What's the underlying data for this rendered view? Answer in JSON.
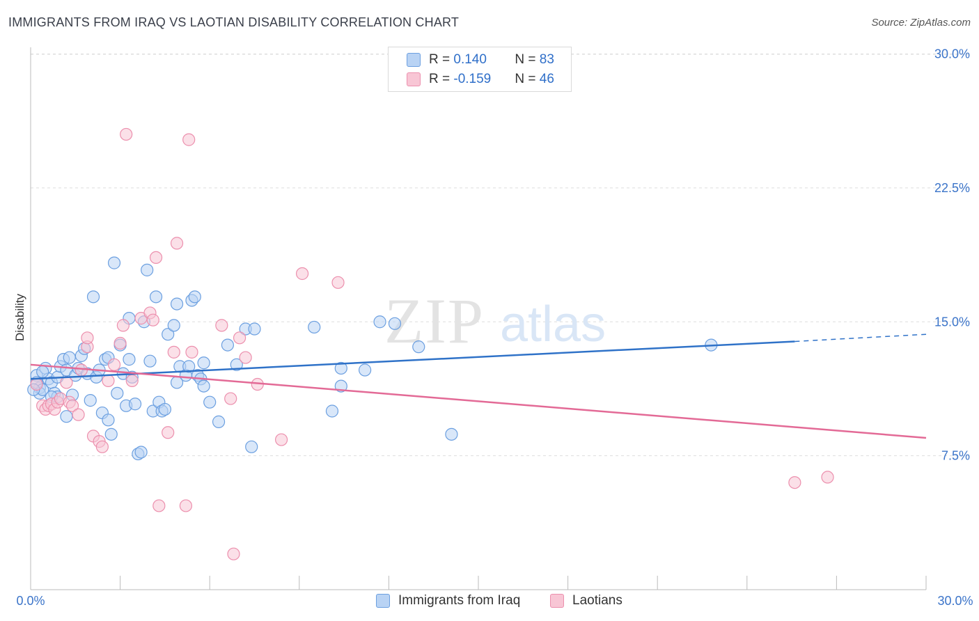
{
  "title": "IMMIGRANTS FROM IRAQ VS LAOTIAN DISABILITY CORRELATION CHART",
  "source": "Source: ZipAtlas.com",
  "watermark": {
    "zip": "ZIP",
    "atlas": "atlas"
  },
  "legend": {
    "rows": [
      {
        "r_label": "R = ",
        "r_value": "0.140",
        "n_label": "N = ",
        "n_value": "83"
      },
      {
        "r_label": "R = ",
        "r_value": "-0.159",
        "n_label": "N = ",
        "n_value": "46"
      }
    ]
  },
  "colors": {
    "blue_fill": "#b9d3f4",
    "blue_stroke": "#6b9fe0",
    "blue_line": "#2f72c8",
    "pink_fill": "#f8c6d5",
    "pink_stroke": "#ec8fad",
    "pink_line": "#e36a96",
    "axis_text": "#3b74c9",
    "grid": "#dddddd"
  },
  "chart_data": {
    "type": "scatter",
    "title": "IMMIGRANTS FROM IRAQ VS LAOTIAN DISABILITY CORRELATION CHART",
    "xlabel": "",
    "ylabel": "Disability",
    "xlim": [
      0,
      30
    ],
    "ylim": [
      0,
      31
    ],
    "x_tick_labels": [
      "0.0%",
      "30.0%"
    ],
    "y_ticks": [
      7.5,
      15.0,
      22.5,
      30.0
    ],
    "y_tick_labels": [
      "7.5%",
      "15.0%",
      "22.5%",
      "30.0%"
    ],
    "grid": true,
    "legend_position": "top-center",
    "series": [
      {
        "name": "Immigrants from Iraq",
        "color": "#6b9fe0",
        "r": 0.14,
        "n": 83,
        "trend": {
          "x": [
            0,
            25.6,
            30
          ],
          "y": [
            11.8,
            13.9,
            14.3
          ],
          "dashed_from": 25.6
        },
        "points": [
          [
            0.2,
            12.0
          ],
          [
            0.3,
            11.3
          ],
          [
            0.3,
            11.0
          ],
          [
            0.2,
            11.6
          ],
          [
            0.4,
            11.2
          ],
          [
            0.5,
            12.4
          ],
          [
            0.6,
            11.8
          ],
          [
            0.7,
            11.6
          ],
          [
            0.8,
            11.0
          ],
          [
            0.9,
            11.9
          ],
          [
            1.0,
            12.5
          ],
          [
            1.1,
            12.9
          ],
          [
            1.2,
            12.3
          ],
          [
            0.9,
            10.8
          ],
          [
            1.2,
            9.7
          ],
          [
            1.4,
            10.9
          ],
          [
            1.5,
            12.0
          ],
          [
            1.6,
            12.4
          ],
          [
            1.7,
            13.1
          ],
          [
            1.8,
            13.5
          ],
          [
            1.9,
            12.1
          ],
          [
            2.0,
            10.6
          ],
          [
            2.1,
            16.4
          ],
          [
            2.2,
            11.9
          ],
          [
            2.3,
            12.3
          ],
          [
            2.4,
            9.9
          ],
          [
            2.5,
            12.9
          ],
          [
            2.6,
            9.5
          ],
          [
            2.7,
            8.7
          ],
          [
            2.8,
            18.3
          ],
          [
            2.9,
            11.0
          ],
          [
            3.0,
            13.7
          ],
          [
            3.1,
            12.1
          ],
          [
            3.2,
            10.3
          ],
          [
            3.3,
            12.9
          ],
          [
            3.4,
            11.9
          ],
          [
            3.5,
            10.4
          ],
          [
            3.6,
            7.6
          ],
          [
            3.7,
            7.7
          ],
          [
            3.8,
            15.0
          ],
          [
            3.9,
            17.9
          ],
          [
            4.0,
            12.8
          ],
          [
            4.1,
            10.0
          ],
          [
            4.2,
            16.4
          ],
          [
            4.3,
            10.5
          ],
          [
            4.4,
            10.0
          ],
          [
            4.5,
            10.1
          ],
          [
            4.6,
            14.3
          ],
          [
            4.8,
            14.8
          ],
          [
            4.9,
            16.0
          ],
          [
            5.0,
            12.5
          ],
          [
            5.2,
            12.0
          ],
          [
            5.3,
            12.5
          ],
          [
            5.4,
            16.2
          ],
          [
            5.5,
            16.4
          ],
          [
            5.6,
            12.0
          ],
          [
            5.7,
            11.8
          ],
          [
            5.8,
            11.4
          ],
          [
            6.0,
            10.5
          ],
          [
            6.3,
            9.4
          ],
          [
            6.6,
            13.7
          ],
          [
            7.2,
            14.6
          ],
          [
            7.5,
            14.6
          ],
          [
            7.4,
            8.0
          ],
          [
            9.5,
            14.7
          ],
          [
            10.1,
            10.0
          ],
          [
            10.4,
            12.4
          ],
          [
            10.4,
            11.4
          ],
          [
            11.2,
            12.3
          ],
          [
            11.7,
            15.0
          ],
          [
            12.2,
            14.9
          ],
          [
            13.0,
            13.6
          ],
          [
            14.1,
            8.7
          ],
          [
            22.8,
            13.7
          ],
          [
            0.1,
            11.2
          ],
          [
            0.4,
            12.2
          ],
          [
            0.7,
            10.8
          ],
          [
            1.3,
            13.0
          ],
          [
            2.6,
            13.0
          ],
          [
            3.3,
            15.2
          ],
          [
            4.9,
            11.6
          ],
          [
            5.8,
            12.7
          ],
          [
            6.9,
            12.6
          ]
        ]
      },
      {
        "name": "Laotians",
        "color": "#ec8fad",
        "r": -0.159,
        "n": 46,
        "trend": {
          "x": [
            0,
            30
          ],
          "y": [
            12.6,
            8.5
          ]
        },
        "points": [
          [
            0.2,
            11.5
          ],
          [
            0.4,
            10.3
          ],
          [
            0.5,
            10.1
          ],
          [
            0.6,
            10.3
          ],
          [
            0.7,
            10.4
          ],
          [
            0.8,
            10.1
          ],
          [
            0.9,
            10.5
          ],
          [
            1.0,
            10.7
          ],
          [
            1.2,
            11.6
          ],
          [
            1.3,
            10.5
          ],
          [
            1.4,
            10.3
          ],
          [
            1.6,
            9.8
          ],
          [
            1.7,
            12.3
          ],
          [
            1.9,
            13.6
          ],
          [
            1.9,
            14.1
          ],
          [
            2.1,
            8.6
          ],
          [
            2.3,
            8.3
          ],
          [
            2.4,
            8.0
          ],
          [
            2.6,
            11.7
          ],
          [
            2.8,
            12.6
          ],
          [
            3.0,
            13.8
          ],
          [
            3.1,
            14.8
          ],
          [
            3.2,
            25.5
          ],
          [
            3.4,
            11.7
          ],
          [
            3.7,
            15.2
          ],
          [
            4.0,
            15.5
          ],
          [
            4.1,
            15.1
          ],
          [
            4.2,
            18.6
          ],
          [
            4.3,
            4.7
          ],
          [
            4.6,
            8.8
          ],
          [
            4.8,
            13.3
          ],
          [
            4.9,
            19.4
          ],
          [
            5.2,
            4.7
          ],
          [
            5.3,
            25.2
          ],
          [
            5.4,
            13.3
          ],
          [
            6.4,
            14.8
          ],
          [
            6.7,
            10.7
          ],
          [
            6.8,
            2.0
          ],
          [
            7.0,
            14.1
          ],
          [
            7.2,
            13.0
          ],
          [
            7.6,
            11.5
          ],
          [
            8.4,
            8.4
          ],
          [
            9.1,
            17.7
          ],
          [
            10.3,
            17.2
          ],
          [
            25.6,
            6.0
          ],
          [
            26.7,
            6.3
          ]
        ]
      }
    ]
  },
  "bottom_legend": {
    "items": [
      "Immigrants from Iraq",
      "Laotians"
    ]
  }
}
